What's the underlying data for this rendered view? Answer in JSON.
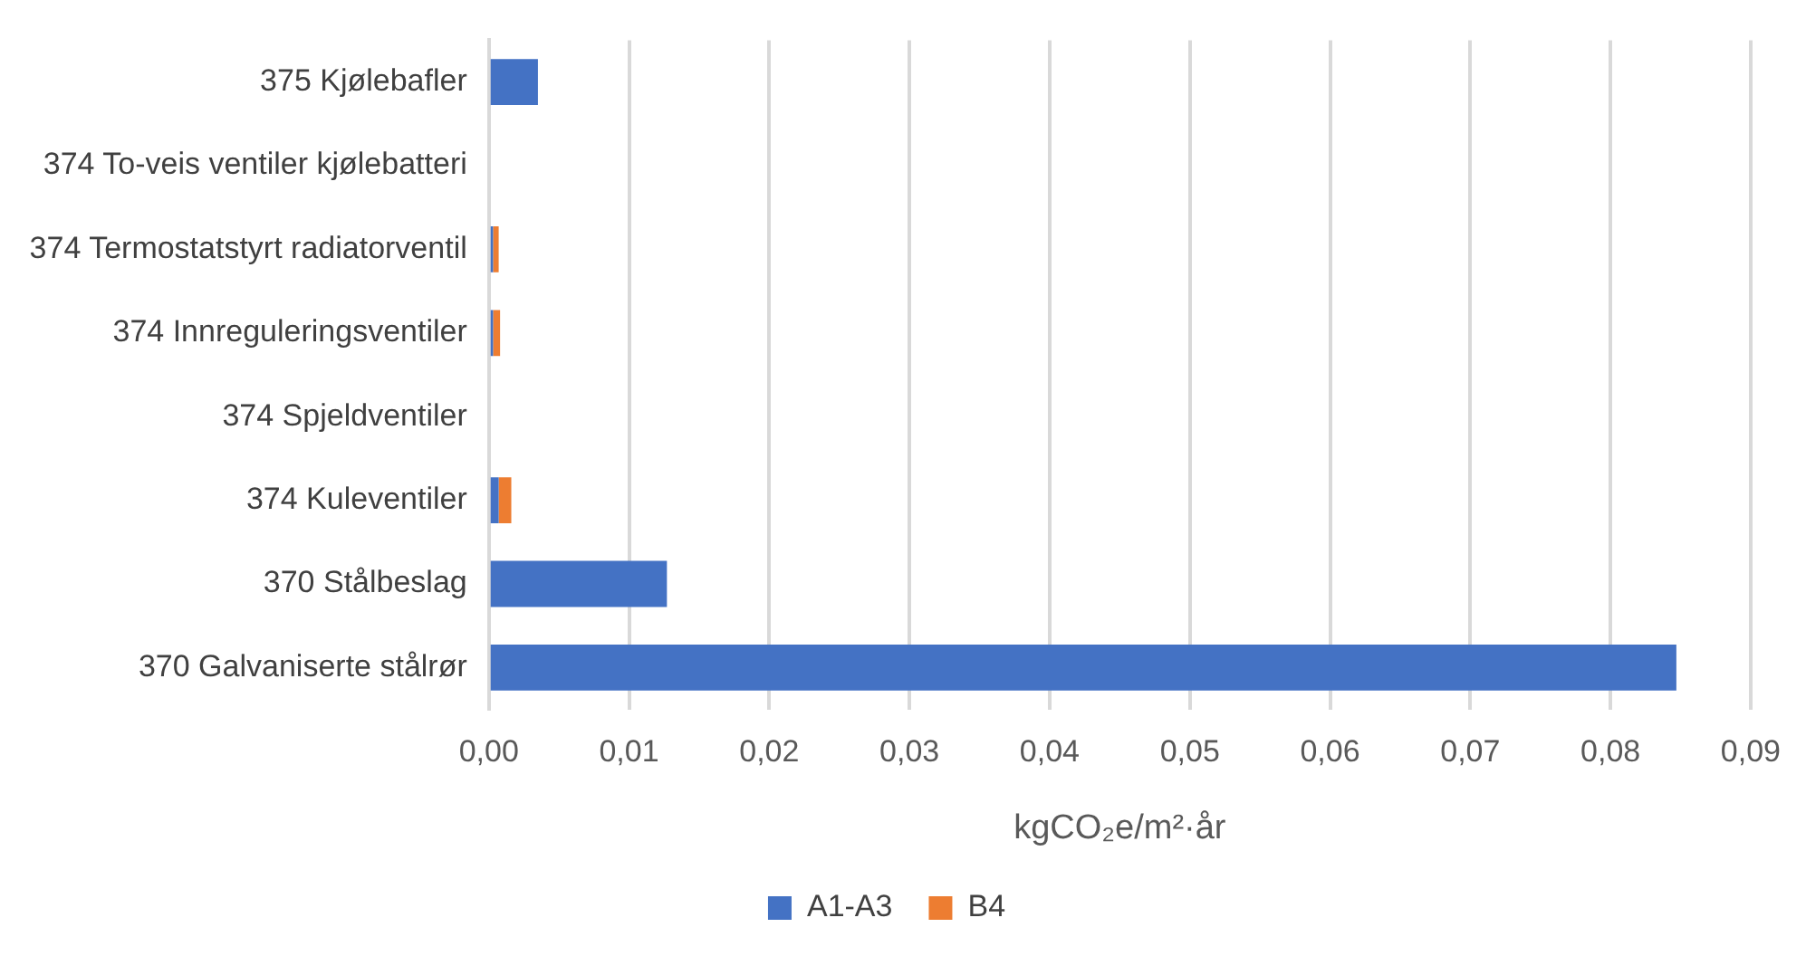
{
  "chart_data": {
    "type": "bar",
    "orientation": "horizontal",
    "stacked": true,
    "categories": [
      "375 Kjølebafler",
      "374 To-veis ventiler kjølebatteri",
      "374 Termostatstyrt radiatorventil",
      "374 Innreguleringsventiler",
      "374 Spjeldventiler",
      "374 Kuleventiler",
      "370 Stålbeslag",
      "370 Galvaniserte stålrør"
    ],
    "series": [
      {
        "name": "A1-A3",
        "color": "#4472c4",
        "values": [
          0.0035,
          0,
          0.0003,
          0.0003,
          0,
          0.0007,
          0.0127,
          0.0847
        ]
      },
      {
        "name": "B4",
        "color": "#ed7d31",
        "values": [
          0,
          0,
          0.0004,
          0.0005,
          0,
          0.0009,
          0,
          0
        ]
      }
    ],
    "xlabel": "kgCO₂e/m²·år",
    "xlim": [
      0,
      0.09
    ],
    "xticks": [
      {
        "value": 0,
        "label": "0,00"
      },
      {
        "value": 0.01,
        "label": "0,01"
      },
      {
        "value": 0.02,
        "label": "0,02"
      },
      {
        "value": 0.03,
        "label": "0,03"
      },
      {
        "value": 0.04,
        "label": "0,04"
      },
      {
        "value": 0.05,
        "label": "0,05"
      },
      {
        "value": 0.06,
        "label": "0,06"
      },
      {
        "value": 0.07,
        "label": "0,07"
      },
      {
        "value": 0.08,
        "label": "0,08"
      },
      {
        "value": 0.09,
        "label": "0,09"
      }
    ],
    "grid": "x",
    "legend": "bottom"
  }
}
